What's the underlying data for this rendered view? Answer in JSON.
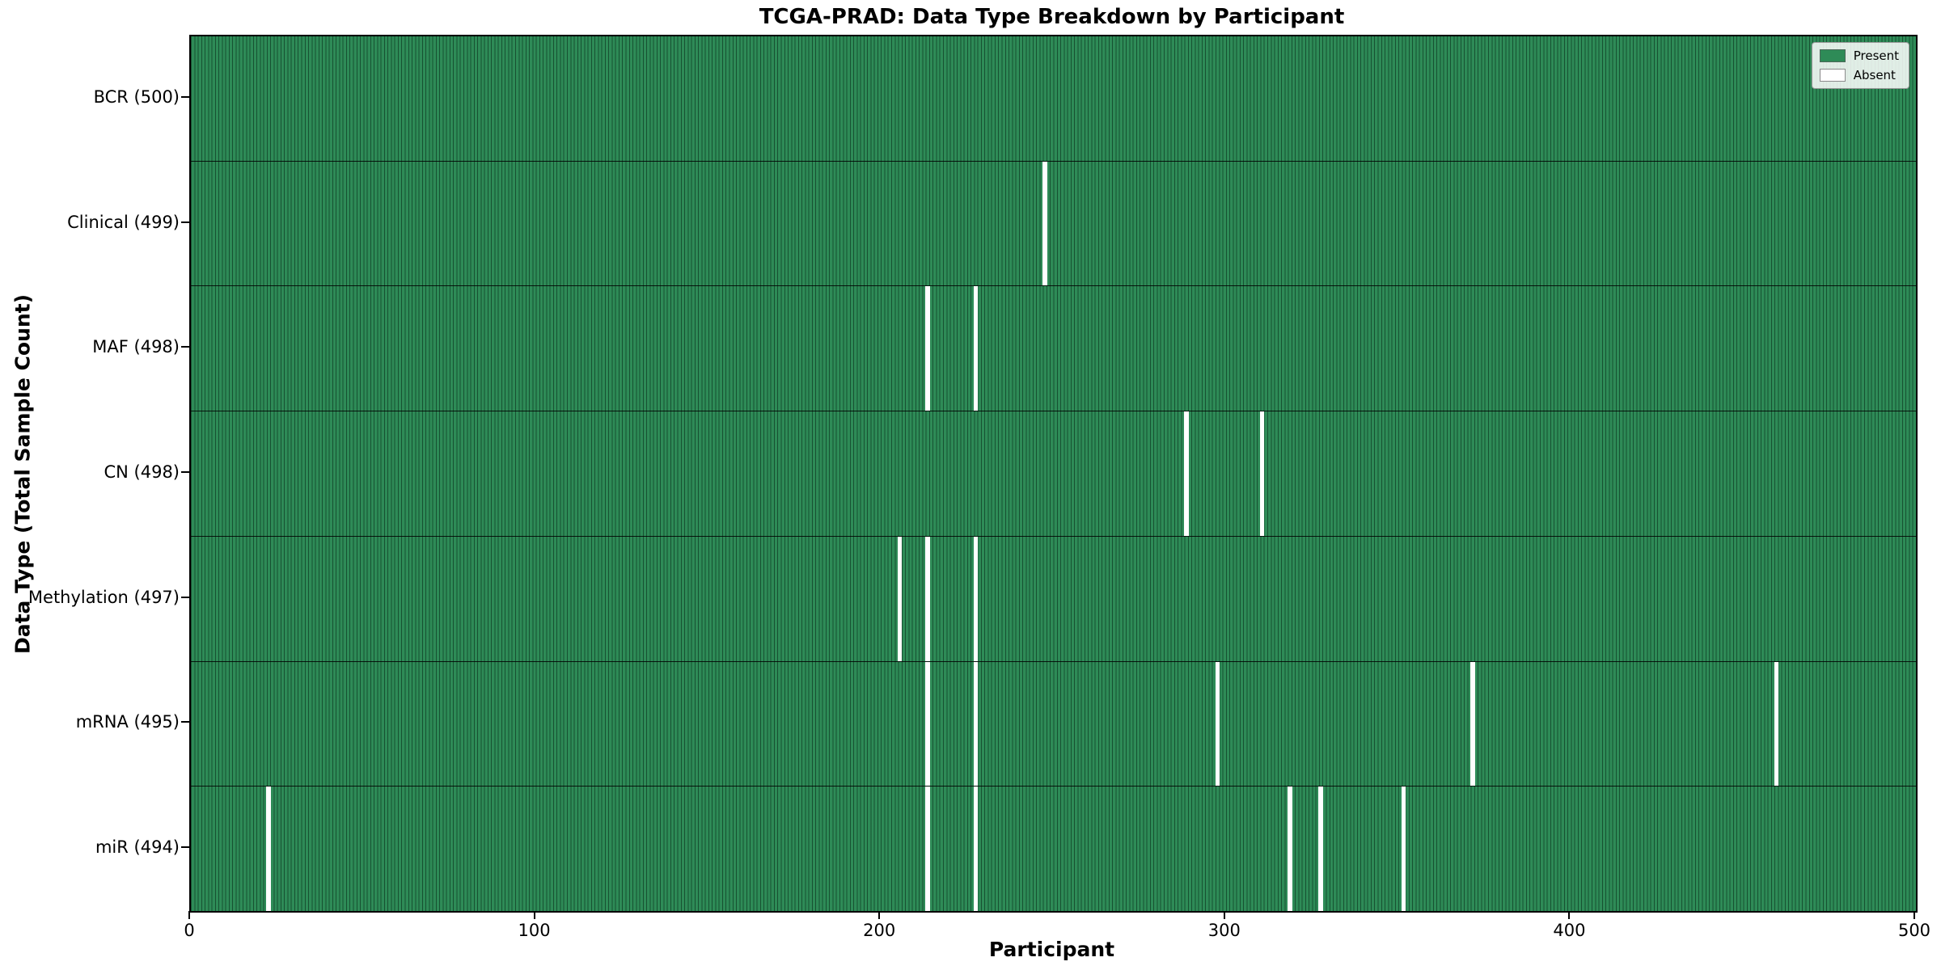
{
  "title": "TCGA-PRAD: Data Type Breakdown by Participant",
  "axes": {
    "xlabel": "Participant",
    "ylabel": "Data Type (Total Sample Count)",
    "xticks": [
      0,
      100,
      200,
      300,
      400,
      500
    ],
    "x_range": [
      0,
      500
    ]
  },
  "legend": {
    "present_label": "Present",
    "absent_label": "Absent"
  },
  "colors": {
    "present": "#2e8b57",
    "absent": "#ffffff",
    "cell_edge": "rgba(8,42,24,0.6)",
    "row_divider": "#000000"
  },
  "chart_data": {
    "type": "heatmap",
    "title": "TCGA-PRAD: Data Type Breakdown by Participant",
    "xlabel": "Participant",
    "ylabel": "Data Type (Total Sample Count)",
    "x_range": [
      0,
      500
    ],
    "total_participants": 500,
    "legend_entries": [
      "Present",
      "Absent"
    ],
    "legend_position": "upper right",
    "rows": [
      {
        "label": "BCR (500)",
        "data_type": "BCR",
        "present_count": 500,
        "absent_participants": []
      },
      {
        "label": "Clinical (499)",
        "data_type": "Clinical",
        "present_count": 499,
        "absent_participants": [
          247
        ]
      },
      {
        "label": "MAF (498)",
        "data_type": "MAF",
        "present_count": 498,
        "absent_participants": [
          213,
          227
        ]
      },
      {
        "label": "CN (498)",
        "data_type": "CN",
        "present_count": 498,
        "absent_participants": [
          288,
          310
        ]
      },
      {
        "label": "Methylation (497)",
        "data_type": "Methylation",
        "present_count": 497,
        "absent_participants": [
          205,
          213,
          227
        ]
      },
      {
        "label": "mRNA (495)",
        "data_type": "mRNA",
        "present_count": 495,
        "absent_participants": [
          213,
          227,
          297,
          371,
          459
        ]
      },
      {
        "label": "miR (494)",
        "data_type": "miR",
        "present_count": 494,
        "absent_participants": [
          22,
          213,
          227,
          318,
          327,
          351
        ]
      }
    ]
  }
}
